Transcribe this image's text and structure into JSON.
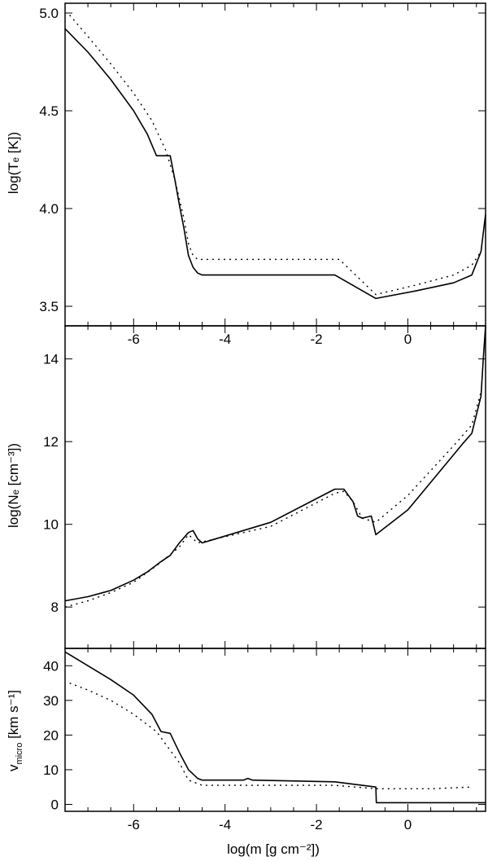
{
  "chart_data": [
    {
      "type": "line",
      "ylabel": "log(Tₑ [K])",
      "xlim": [
        -7.5,
        1.7
      ],
      "ylim": [
        3.4,
        5.05
      ],
      "yticks": [
        "3.5",
        "4.0",
        "4.5",
        "5.0"
      ],
      "ytick_values": [
        3.5,
        4.0,
        4.5,
        5.0
      ],
      "xticks": [],
      "series": [
        {
          "style": "solid",
          "x": [
            -7.5,
            -7.0,
            -6.5,
            -6.0,
            -5.7,
            -5.5,
            -5.4,
            -5.2,
            -5.1,
            -5.0,
            -4.9,
            -4.8,
            -4.7,
            -4.6,
            -4.5,
            -3.0,
            -1.6,
            -0.7,
            0.2,
            1.0,
            1.4,
            1.6,
            1.7
          ],
          "y": [
            4.92,
            4.8,
            4.66,
            4.5,
            4.38,
            4.27,
            4.27,
            4.27,
            4.15,
            4.02,
            3.9,
            3.76,
            3.7,
            3.67,
            3.66,
            3.66,
            3.66,
            3.54,
            3.58,
            3.62,
            3.66,
            3.78,
            3.97
          ]
        },
        {
          "style": "dotted",
          "x": [
            -7.4,
            -7.0,
            -6.5,
            -6.0,
            -5.6,
            -5.3,
            -5.1,
            -4.9,
            -4.8,
            -4.7,
            -4.6,
            -1.5,
            -0.7,
            0.2,
            1.0,
            1.4,
            1.6
          ],
          "y": [
            4.99,
            4.88,
            4.74,
            4.59,
            4.45,
            4.3,
            4.15,
            3.95,
            3.82,
            3.76,
            3.74,
            3.74,
            3.56,
            3.61,
            3.66,
            3.71,
            3.78
          ]
        }
      ]
    },
    {
      "type": "line",
      "ylabel": "log(Nₑ [cm⁻³])",
      "xlim": [
        -7.5,
        1.7
      ],
      "ylim": [
        7.0,
        14.8
      ],
      "yticks": [
        "8",
        "10",
        "12",
        "14"
      ],
      "ytick_values": [
        8,
        10,
        12,
        14
      ],
      "xticks": [
        "-6",
        "-4",
        "-2",
        "0"
      ],
      "xtick_values": [
        -6,
        -4,
        -2,
        0
      ],
      "series": [
        {
          "style": "solid",
          "x": [
            -7.5,
            -7.0,
            -6.5,
            -6.0,
            -5.7,
            -5.4,
            -5.2,
            -5.0,
            -4.8,
            -4.7,
            -4.6,
            -4.5,
            -3.0,
            -1.6,
            -1.4,
            -1.2,
            -1.1,
            -1.0,
            -0.8,
            -0.7,
            0.0,
            1.2,
            1.4,
            1.6,
            1.65,
            1.7
          ],
          "y": [
            8.15,
            8.25,
            8.4,
            8.65,
            8.85,
            9.1,
            9.25,
            9.55,
            9.8,
            9.85,
            9.65,
            9.55,
            10.05,
            10.85,
            10.85,
            10.55,
            10.2,
            10.15,
            10.2,
            9.75,
            10.35,
            11.95,
            12.2,
            13.1,
            14.0,
            14.8
          ]
        },
        {
          "style": "dotted",
          "x": [
            -7.5,
            -7.0,
            -6.5,
            -6.0,
            -5.5,
            -5.0,
            -4.8,
            -4.6,
            -3.0,
            -1.6,
            -1.4,
            -1.2,
            -1.0,
            -0.7,
            0.0,
            1.0,
            1.4,
            1.6
          ],
          "y": [
            8.0,
            8.15,
            8.35,
            8.6,
            9.0,
            9.45,
            9.75,
            9.55,
            9.95,
            10.75,
            10.8,
            10.55,
            10.15,
            10.05,
            10.7,
            11.9,
            12.4,
            13.2
          ]
        }
      ]
    },
    {
      "type": "line",
      "ylabel": "v",
      "ylabel_sub": "micro",
      "ylabel_rest": " [km s⁻¹]",
      "xlabel": "log(m [g cm⁻²])",
      "xlim": [
        -7.5,
        1.7
      ],
      "ylim": [
        -2,
        45
      ],
      "yticks": [
        "0",
        "10",
        "20",
        "30",
        "40"
      ],
      "ytick_values": [
        0,
        10,
        20,
        30,
        40
      ],
      "xticks": [
        "-6",
        "-4",
        "-2",
        "0"
      ],
      "xtick_values": [
        -6,
        -4,
        -2,
        0
      ],
      "series": [
        {
          "style": "solid",
          "x": [
            -7.5,
            -7.0,
            -6.5,
            -6.0,
            -5.6,
            -5.4,
            -5.2,
            -5.0,
            -4.8,
            -4.6,
            -4.5,
            -3.6,
            -3.5,
            -3.4,
            -1.6,
            -0.7,
            -0.69,
            1.7
          ],
          "y": [
            44.0,
            40.0,
            36.0,
            31.5,
            26.0,
            21.0,
            20.5,
            15.0,
            10.0,
            7.5,
            7.0,
            7.0,
            7.5,
            7.0,
            6.5,
            5.0,
            0.5,
            0.5
          ]
        },
        {
          "style": "dotted",
          "x": [
            -7.4,
            -7.0,
            -6.5,
            -6.0,
            -5.5,
            -5.0,
            -4.8,
            -4.6,
            -4.5,
            -1.6,
            -0.7,
            0.5,
            1.4
          ],
          "y": [
            35.0,
            33.0,
            30.0,
            26.0,
            21.0,
            12.0,
            7.0,
            6.0,
            5.5,
            5.5,
            4.5,
            4.5,
            5.0
          ]
        }
      ]
    }
  ]
}
